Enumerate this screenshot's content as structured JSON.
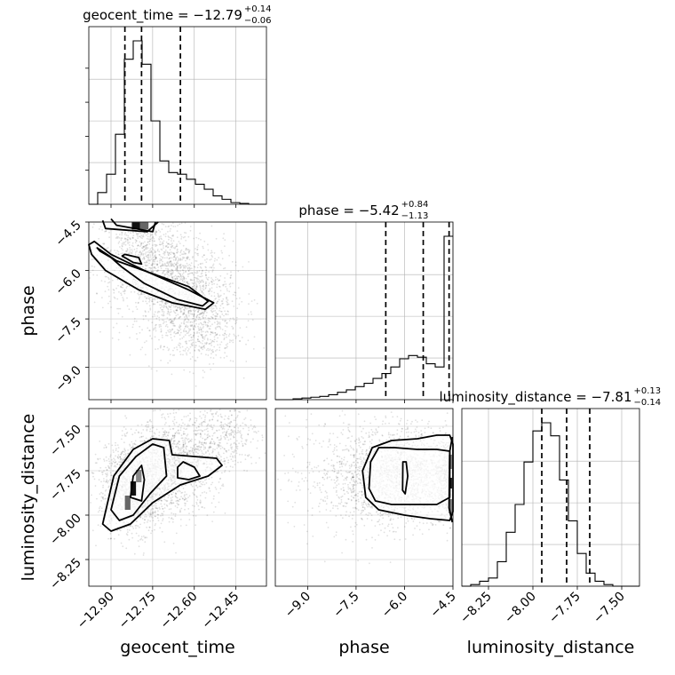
{
  "chart_data": {
    "type": "corner",
    "parameters": [
      {
        "key": "geocent_time",
        "axis_label": "geocent_time",
        "title": "geocent_time = −12.79",
        "sup": "+0.14",
        "sub": "−0.06",
        "range": [
          -12.98,
          -12.34
        ],
        "ticks": [
          -12.9,
          -12.75,
          -12.6,
          -12.45
        ],
        "tick_labels": [
          "−12.90",
          "−12.75",
          "−12.60",
          "−12.45"
        ],
        "quantiles": [
          -12.85,
          -12.79,
          -12.65
        ],
        "hist_edges_from": -12.98,
        "hist_bin_width": 0.032,
        "hist_counts": [
          0.0,
          0.07,
          0.18,
          0.42,
          0.87,
          0.98,
          0.84,
          0.5,
          0.26,
          0.19,
          0.18,
          0.15,
          0.12,
          0.09,
          0.05,
          0.03,
          0.01,
          0.005,
          0.0,
          0.0
        ]
      },
      {
        "key": "phase",
        "axis_label": "phase",
        "title": "phase = −5.42",
        "sup": "+0.84",
        "sub": "−1.13",
        "range": [
          -10.0,
          -4.5
        ],
        "ticks": [
          -9.0,
          -7.5,
          -6.0,
          -4.5
        ],
        "tick_labels": [
          "−9.0",
          "−7.5",
          "−6.0",
          "−4.5"
        ],
        "quantiles": [
          -6.58,
          -5.42,
          -4.62
        ],
        "hist_edges_from": -10.0,
        "hist_bin_width": 0.275,
        "hist_counts": [
          0.0,
          0.0,
          0.005,
          0.01,
          0.015,
          0.02,
          0.03,
          0.045,
          0.06,
          0.08,
          0.1,
          0.13,
          0.16,
          0.2,
          0.25,
          0.27,
          0.26,
          0.22,
          0.2,
          1.0
        ]
      },
      {
        "key": "luminosity_distance",
        "axis_label": "luminosity_distance",
        "title": "luminosity_distance = −7.81",
        "sup": "+0.13",
        "sub": "−0.14",
        "range": [
          -8.4,
          -7.4
        ],
        "ticks": [
          -8.25,
          -8.0,
          -7.75,
          -7.5
        ],
        "tick_labels": [
          "−8.25",
          "−8.00",
          "−7.75",
          "−7.50"
        ],
        "quantiles": [
          -7.95,
          -7.81,
          -7.68
        ],
        "hist_edges_from": -8.4,
        "hist_bin_width": 0.05,
        "hist_counts": [
          0.0,
          0.01,
          0.03,
          0.05,
          0.15,
          0.33,
          0.5,
          0.76,
          0.95,
          1.0,
          0.92,
          0.65,
          0.4,
          0.2,
          0.08,
          0.03,
          0.01,
          0.0,
          0.0,
          0.0
        ]
      }
    ],
    "pairs": [
      {
        "x": "geocent_time",
        "y": "phase",
        "y_ticks": [
          -4.5,
          -6.0,
          -7.5,
          -9.0
        ],
        "y_tick_labels": [
          "−4.5",
          "−6.0",
          "−7.5",
          "−9.0"
        ],
        "y_range": [
          -10.0,
          -4.5
        ],
        "blobs": [
          {
            "cx": -12.78,
            "cy": -5.6,
            "sx": 0.09,
            "sy": 0.75,
            "n": 900
          },
          {
            "cx": -12.64,
            "cy": -6.7,
            "sx": 0.09,
            "sy": 0.8,
            "n": 1100
          },
          {
            "cx": -12.58,
            "cy": -7.8,
            "sx": 0.07,
            "sy": 0.6,
            "n": 400
          }
        ],
        "contours": [
          [
            [
              -12.9,
              -4.4
            ],
            [
              -12.88,
              -4.6
            ],
            [
              -12.75,
              -4.8
            ],
            [
              -12.74,
              -4.5
            ]
          ],
          [
            [
              -12.93,
              -4.45
            ],
            [
              -12.92,
              -4.7
            ],
            [
              -12.77,
              -4.8
            ],
            [
              -12.73,
              -4.5
            ]
          ],
          [
            [
              -12.86,
              -5.55
            ],
            [
              -12.82,
              -5.75
            ],
            [
              -12.79,
              -5.8
            ],
            [
              -12.8,
              -5.6
            ],
            [
              -12.85,
              -5.5
            ]
          ],
          [
            [
              -12.95,
              -5.3
            ],
            [
              -12.88,
              -5.7
            ],
            [
              -12.75,
              -6.1
            ],
            [
              -12.62,
              -6.5
            ],
            [
              -12.55,
              -6.95
            ],
            [
              -12.57,
              -7.1
            ],
            [
              -12.66,
              -6.9
            ],
            [
              -12.78,
              -6.4
            ],
            [
              -12.86,
              -5.9
            ],
            [
              -12.9,
              -5.6
            ],
            [
              -12.94,
              -5.4
            ]
          ],
          [
            [
              -12.96,
              -5.1
            ],
            [
              -12.9,
              -5.5
            ],
            [
              -12.78,
              -6.0
            ],
            [
              -12.62,
              -6.6
            ],
            [
              -12.53,
              -7.0
            ],
            [
              -12.56,
              -7.2
            ],
            [
              -12.68,
              -7.0
            ],
            [
              -12.8,
              -6.6
            ],
            [
              -12.92,
              -6.0
            ],
            [
              -12.97,
              -5.5
            ],
            [
              -12.98,
              -5.2
            ]
          ]
        ],
        "hot": [
          {
            "x": -12.81,
            "y": -4.62,
            "w": 0.03,
            "h": 0.22,
            "c": "#111111"
          },
          {
            "x": -12.78,
            "y": -4.62,
            "w": 0.03,
            "h": 0.22,
            "c": "#666666"
          }
        ]
      },
      {
        "x": "geocent_time",
        "y": "luminosity_distance",
        "y_ticks": [
          -7.5,
          -7.75,
          -8.0,
          -8.25
        ],
        "y_tick_labels": [
          "−7.50",
          "−7.75",
          "−8.00",
          "−8.25"
        ],
        "y_range": [
          -8.4,
          -7.4
        ],
        "blobs": [
          {
            "cx": -12.82,
            "cy": -7.85,
            "sx": 0.06,
            "sy": 0.12,
            "n": 1400
          },
          {
            "cx": -12.68,
            "cy": -7.72,
            "sx": 0.08,
            "sy": 0.13,
            "n": 1300
          },
          {
            "cx": -12.5,
            "cy": -7.55,
            "sx": 0.07,
            "sy": 0.1,
            "n": 400
          }
        ],
        "contours": [
          [
            [
              -12.83,
              -7.9
            ],
            [
              -12.82,
              -7.78
            ],
            [
              -12.79,
              -7.72
            ],
            [
              -12.78,
              -7.8
            ],
            [
              -12.79,
              -7.92
            ]
          ],
          [
            [
              -12.66,
              -7.73
            ],
            [
              -12.64,
              -7.7
            ],
            [
              -12.6,
              -7.73
            ],
            [
              -12.58,
              -7.78
            ],
            [
              -12.62,
              -7.8
            ],
            [
              -12.66,
              -7.79
            ]
          ],
          [
            [
              -12.9,
              -7.97
            ],
            [
              -12.87,
              -7.78
            ],
            [
              -12.81,
              -7.67
            ],
            [
              -12.75,
              -7.6
            ],
            [
              -12.71,
              -7.62
            ],
            [
              -12.7,
              -7.78
            ],
            [
              -12.76,
              -7.88
            ],
            [
              -12.82,
              -8.0
            ],
            [
              -12.87,
              -8.03
            ]
          ],
          [
            [
              -12.93,
              -8.05
            ],
            [
              -12.89,
              -7.78
            ],
            [
              -12.82,
              -7.63
            ],
            [
              -12.75,
              -7.57
            ],
            [
              -12.69,
              -7.58
            ],
            [
              -12.68,
              -7.66
            ],
            [
              -12.6,
              -7.67
            ],
            [
              -12.52,
              -7.68
            ],
            [
              -12.5,
              -7.72
            ],
            [
              -12.55,
              -7.78
            ],
            [
              -12.65,
              -7.83
            ],
            [
              -12.75,
              -7.93
            ],
            [
              -12.83,
              -8.05
            ],
            [
              -12.9,
              -8.09
            ]
          ]
        ],
        "hot": [
          {
            "x": -12.82,
            "y": -7.85,
            "w": 0.02,
            "h": 0.08,
            "c": "#111111"
          },
          {
            "x": -12.8,
            "y": -7.78,
            "w": 0.02,
            "h": 0.07,
            "c": "#888888"
          },
          {
            "x": -12.84,
            "y": -7.93,
            "w": 0.02,
            "h": 0.08,
            "c": "#666666"
          }
        ]
      },
      {
        "x": "phase",
        "y": "luminosity_distance",
        "y_ticks": [],
        "y_tick_labels": [],
        "y_range": [
          -8.4,
          -7.4
        ],
        "blobs": [
          {
            "cx": -6.0,
            "cy": -7.78,
            "sx": 0.9,
            "sy": 0.13,
            "n": 1600
          },
          {
            "cx": -7.2,
            "cy": -7.78,
            "sx": 1.2,
            "sy": 0.16,
            "n": 700
          },
          {
            "cx": -4.65,
            "cy": -7.8,
            "sx": 0.2,
            "sy": 0.1,
            "n": 500
          }
        ],
        "contours": [
          [
            [
              -6.05,
              -7.7
            ],
            [
              -5.95,
              -7.7
            ],
            [
              -5.9,
              -7.78
            ],
            [
              -5.98,
              -7.88
            ],
            [
              -6.06,
              -7.86
            ]
          ],
          [
            [
              -7.05,
              -7.7
            ],
            [
              -6.8,
              -7.62
            ],
            [
              -6.3,
              -7.62
            ],
            [
              -5.6,
              -7.63
            ],
            [
              -5.0,
              -7.63
            ],
            [
              -4.6,
              -7.64
            ],
            [
              -4.6,
              -7.9
            ],
            [
              -5.0,
              -7.94
            ],
            [
              -5.6,
              -7.94
            ],
            [
              -6.4,
              -7.94
            ],
            [
              -6.9,
              -7.92
            ],
            [
              -7.1,
              -7.85
            ]
          ],
          [
            [
              -7.3,
              -7.75
            ],
            [
              -7.0,
              -7.62
            ],
            [
              -6.4,
              -7.58
            ],
            [
              -5.6,
              -7.57
            ],
            [
              -5.0,
              -7.55
            ],
            [
              -4.6,
              -7.55
            ],
            [
              -4.5,
              -7.6
            ],
            [
              -4.5,
              -7.98
            ],
            [
              -4.6,
              -8.03
            ],
            [
              -5.2,
              -8.02
            ],
            [
              -6.0,
              -8.0
            ],
            [
              -6.8,
              -7.97
            ],
            [
              -7.2,
              -7.9
            ]
          ],
          [
            [
              -4.52,
              -7.56
            ],
            [
              -4.6,
              -7.64
            ],
            [
              -4.62,
              -7.96
            ],
            [
              -4.52,
              -8.04
            ]
          ]
        ],
        "hot": [
          {
            "x": -4.58,
            "y": -7.82,
            "w": 0.1,
            "h": 0.06,
            "c": "#111111"
          },
          {
            "x": -4.58,
            "y": -7.7,
            "w": 0.1,
            "h": 0.08,
            "c": "#777777"
          },
          {
            "x": -4.58,
            "y": -7.95,
            "w": 0.1,
            "h": 0.08,
            "c": "#777777"
          }
        ]
      }
    ]
  }
}
